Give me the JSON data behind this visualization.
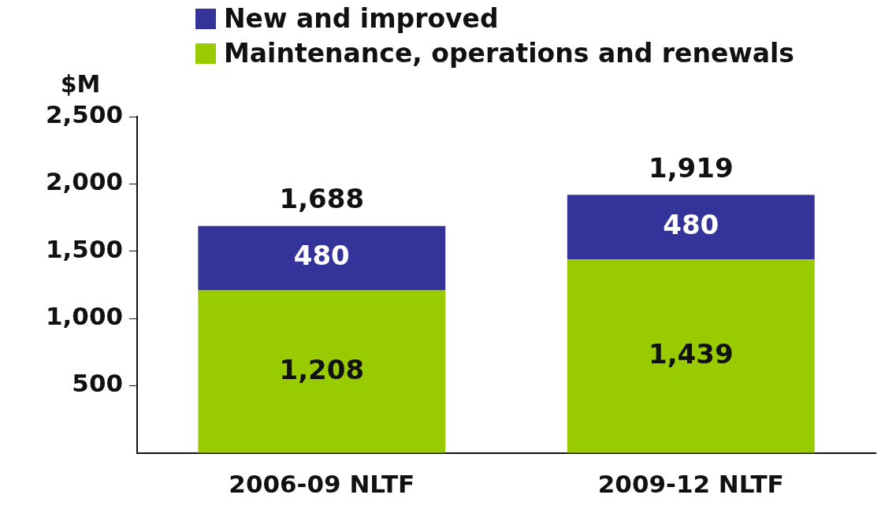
{
  "chart_data": {
    "type": "bar",
    "ylabel": "$M",
    "categories": [
      "2006-09 NLTF",
      "2009-12 NLTF"
    ],
    "stacked": true,
    "series": [
      {
        "name": "Maintenance, operations and renewals",
        "color": "#99cc00",
        "values": [
          1208,
          1439
        ],
        "value_labels": [
          "1,208",
          "1,439"
        ]
      },
      {
        "name": "New and improved",
        "color": "#333399",
        "values": [
          480,
          480
        ],
        "value_labels": [
          "480",
          "480"
        ]
      }
    ],
    "totals": [
      "1,688",
      "1,919"
    ],
    "ylim": [
      0,
      2500
    ],
    "yticks": [
      500,
      {
        "value": 1000,
        "label": "1,000"
      },
      {
        "value": 1500,
        "label": "1,500"
      },
      {
        "value": 2000,
        "label": "2,000"
      },
      {
        "value": 2500,
        "label": "2,500"
      }
    ],
    "grid": false,
    "legend": "top"
  }
}
